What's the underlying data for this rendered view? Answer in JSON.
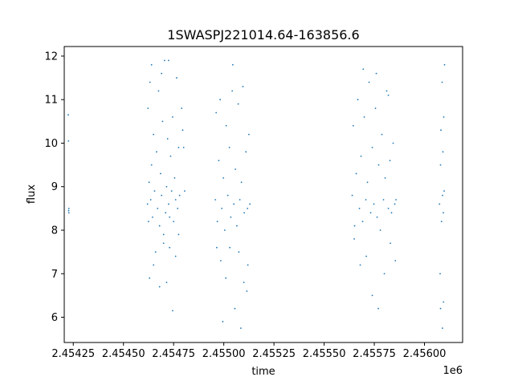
{
  "chart_data": {
    "type": "scatter",
    "title": "1SWASPJ221014.64-163856.6",
    "xlabel": "time",
    "ylabel": "flux",
    "x_offset_label": "1e6",
    "xlim": [
      2454205,
      2456190
    ],
    "ylim": [
      5.42,
      12.22
    ],
    "x_ticks": [
      2454250,
      2454500,
      2454750,
      2455000,
      2455250,
      2455500,
      2455750,
      2456000
    ],
    "x_tick_labels": [
      "2.45425",
      "2.45450",
      "2.45475",
      "2.45500",
      "2.45525",
      "2.45550",
      "2.45575",
      "2.45600"
    ],
    "y_ticks": [
      6,
      7,
      8,
      9,
      10,
      11,
      12
    ],
    "y_tick_labels": [
      "6",
      "7",
      "8",
      "9",
      "10",
      "11",
      "12"
    ],
    "grid": false,
    "marker_color": "#1f77b4",
    "series": [
      {
        "x": [
          2454225,
          2454226,
          2454227,
          2454228,
          2454228,
          2454620,
          2454622,
          2454625,
          2454628,
          2454632,
          2454636,
          2454640,
          2454645,
          2454650,
          2454655,
          2454660,
          2454665,
          2454670,
          2454675,
          2454680,
          2454685,
          2454690,
          2454695,
          2454700,
          2454705,
          2454710,
          2454715,
          2454720,
          2454725,
          2454730,
          2454735,
          2454740,
          2454745,
          2454750,
          2454755,
          2454760,
          2454765,
          2454770,
          2454775,
          2454780,
          2454630,
          2454650,
          2454680,
          2454700,
          2454715,
          2454730,
          2454745,
          2454760,
          2454775,
          2454640,
          2454690,
          2454725,
          2454790,
          2454795,
          2454800,
          2454805,
          2454958,
          2454962,
          2454968,
          2454975,
          2454982,
          2454990,
          2454998,
          2455005,
          2455012,
          2455020,
          2455028,
          2455035,
          2455042,
          2455050,
          2455058,
          2455065,
          2455072,
          2455080,
          2455088,
          2455095,
          2455102,
          2455110,
          2455118,
          2455125,
          2455130,
          2454965,
          2454985,
          2455010,
          2455030,
          2455055,
          2455075,
          2455100,
          2455120,
          2454995,
          2455045,
          2455085,
          2455115,
          2455640,
          2455645,
          2455652,
          2455660,
          2455668,
          2455676,
          2455684,
          2455692,
          2455700,
          2455708,
          2455716,
          2455724,
          2455732,
          2455740,
          2455748,
          2455756,
          2455764,
          2455772,
          2455780,
          2455788,
          2455796,
          2455804,
          2455812,
          2455820,
          2455828,
          2455836,
          2455844,
          2455852,
          2455858,
          2455650,
          2455680,
          2455710,
          2455740,
          2455770,
          2455800,
          2455830,
          2455855,
          2455695,
          2455760,
          2455820,
          2456075,
          2456078,
          2456080,
          2456082,
          2456085,
          2456088,
          2456090,
          2456092,
          2456094,
          2456096,
          2456098,
          2456100,
          2456080,
          2456090,
          2456095
        ],
        "y": [
          10.65,
          10.05,
          8.45,
          8.4,
          8.5,
          8.6,
          10.8,
          8.2,
          9.1,
          11.4,
          8.7,
          9.5,
          8.3,
          10.2,
          8.9,
          7.5,
          9.8,
          8.5,
          11.2,
          8.1,
          9.3,
          8.8,
          10.5,
          7.9,
          11.9,
          8.4,
          9.0,
          10.1,
          8.6,
          8.3,
          9.7,
          8.9,
          10.6,
          8.2,
          9.2,
          8.7,
          11.5,
          8.5,
          9.9,
          8.8,
          6.9,
          7.2,
          6.7,
          7.7,
          6.8,
          7.6,
          6.15,
          7.4,
          7.9,
          11.8,
          11.6,
          11.9,
          10.8,
          10.3,
          9.9,
          8.9,
          8.7,
          10.7,
          8.2,
          9.6,
          11.0,
          8.5,
          9.2,
          8.0,
          10.4,
          8.8,
          9.9,
          8.3,
          11.2,
          8.6,
          9.4,
          8.1,
          10.9,
          8.7,
          9.1,
          11.3,
          8.4,
          9.8,
          8.5,
          10.2,
          8.6,
          7.6,
          7.3,
          6.9,
          7.6,
          6.2,
          7.5,
          6.8,
          7.2,
          5.9,
          11.8,
          5.75,
          6.6,
          8.8,
          10.4,
          8.1,
          9.3,
          11.0,
          8.5,
          9.7,
          8.2,
          10.6,
          8.7,
          9.1,
          11.4,
          8.4,
          9.9,
          8.6,
          10.8,
          8.3,
          9.5,
          8.0,
          10.2,
          8.7,
          9.2,
          11.2,
          8.5,
          9.6,
          8.4,
          10.0,
          8.6,
          8.7,
          7.8,
          7.2,
          7.4,
          6.5,
          6.2,
          7.0,
          7.7,
          7.3,
          11.7,
          11.6,
          11.1,
          8.6,
          7.0,
          9.5,
          10.3,
          8.2,
          11.4,
          8.8,
          9.8,
          8.4,
          10.6,
          8.9,
          11.8,
          6.2,
          5.75,
          6.35
        ]
      }
    ]
  }
}
